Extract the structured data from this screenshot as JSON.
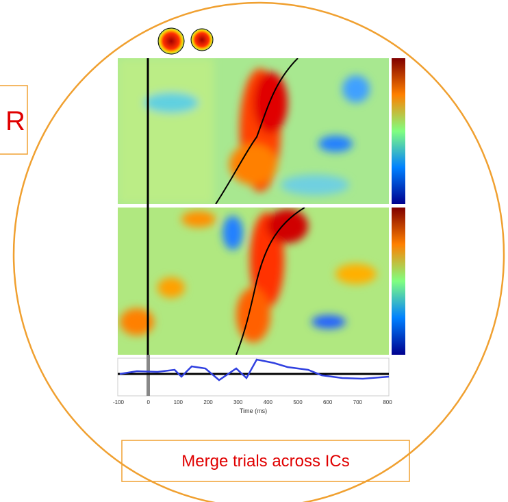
{
  "side_box": {
    "text": "R"
  },
  "figure": {
    "x_ticks": [
      "-100",
      "0",
      "100",
      "200",
      "300",
      "400",
      "500",
      "600",
      "700",
      "800"
    ],
    "x_label": "Time (ms)"
  },
  "caption": {
    "text": "Merge trials across ICs"
  }
}
